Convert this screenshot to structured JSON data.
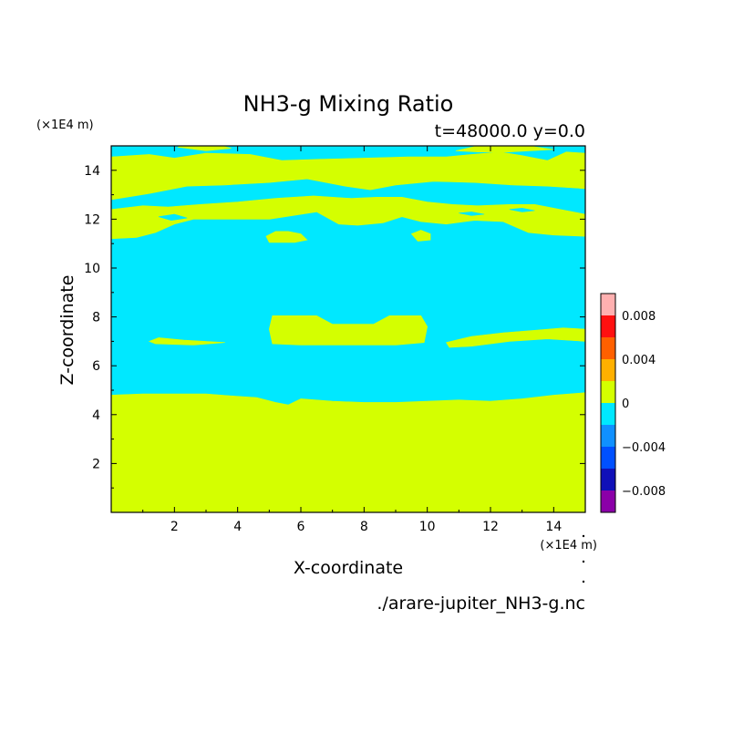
{
  "colors": {
    "background": "#ffffff",
    "text": "#000000",
    "frame": "#000000"
  },
  "chart_data": {
    "type": "heatmap",
    "title": "NH3-g Mixing Ratio",
    "subtitle": "t=48000.0 y=0.0",
    "xlabel": "X-coordinate",
    "ylabel": "Z-coordinate",
    "x_unit_label": "(×1E4 m)",
    "y_unit_label": "(×1E4 m)",
    "x_range": [
      0,
      15
    ],
    "y_range": [
      0,
      15
    ],
    "x_ticks": [
      2,
      4,
      6,
      8,
      10,
      12,
      14
    ],
    "y_ticks": [
      2,
      4,
      6,
      8,
      10,
      12,
      14
    ],
    "filename": "./arare-jupiter_NH3-g.nc",
    "colorbar": {
      "levels": [
        -0.01,
        -0.008,
        -0.006,
        -0.004,
        -0.002,
        0,
        0.002,
        0.004,
        0.006,
        0.008,
        0.01
      ],
      "colors": [
        "#8b00a8",
        "#1010b8",
        "#0050ff",
        "#1090ff",
        "#00e8ff",
        "#d4ff00",
        "#ffb000",
        "#ff6000",
        "#ff1010",
        "#ffb0b0"
      ],
      "tick_values": [
        -0.008,
        -0.004,
        0,
        0.004,
        0.008
      ],
      "tick_labels": [
        "−0.008",
        "−0.004",
        "0",
        "0.004",
        "0.008"
      ]
    },
    "field": {
      "background_class": "-0.002 to 0",
      "regions": [
        {
          "class": "0 to 0.002",
          "polygon": [
            [
              0,
              0
            ],
            [
              15,
              0
            ],
            [
              15,
              4.9
            ],
            [
              14,
              4.8
            ],
            [
              13,
              4.65
            ],
            [
              12,
              4.55
            ],
            [
              11,
              4.6
            ],
            [
              10,
              4.55
            ],
            [
              9,
              4.5
            ],
            [
              8,
              4.5
            ],
            [
              7,
              4.55
            ],
            [
              6,
              4.65
            ],
            [
              5.6,
              4.4
            ],
            [
              5.2,
              4.5
            ],
            [
              4.6,
              4.7
            ],
            [
              4,
              4.75
            ],
            [
              3,
              4.85
            ],
            [
              2,
              4.85
            ],
            [
              1,
              4.85
            ],
            [
              0,
              4.8
            ]
          ]
        },
        {
          "class": "0 to 0.002",
          "polygon": [
            [
              5.0,
              7.5
            ],
            [
              5.1,
              8.05
            ],
            [
              6.5,
              8.05
            ],
            [
              7.0,
              7.7
            ],
            [
              8.3,
              7.7
            ],
            [
              8.8,
              8.05
            ],
            [
              9.8,
              8.05
            ],
            [
              10.0,
              7.6
            ],
            [
              9.9,
              6.95
            ],
            [
              9.0,
              6.85
            ],
            [
              6.0,
              6.85
            ],
            [
              5.1,
              6.9
            ]
          ]
        },
        {
          "class": "0 to 0.002",
          "polygon": [
            [
              1.2,
              7.0
            ],
            [
              1.5,
              7.15
            ],
            [
              2.3,
              7.05
            ],
            [
              3.6,
              6.95
            ],
            [
              2.6,
              6.85
            ],
            [
              1.4,
              6.9
            ]
          ]
        },
        {
          "class": "0 to 0.002",
          "polygon": [
            [
              10.6,
              6.95
            ],
            [
              11.4,
              7.2
            ],
            [
              12.4,
              7.35
            ],
            [
              13.4,
              7.45
            ],
            [
              14.3,
              7.55
            ],
            [
              15,
              7.5
            ],
            [
              15,
              7.0
            ],
            [
              13.8,
              7.1
            ],
            [
              12.6,
              7.0
            ],
            [
              11.4,
              6.8
            ],
            [
              10.7,
              6.75
            ]
          ]
        },
        {
          "class": "0 to 0.002",
          "polygon": [
            [
              0,
              11.2
            ],
            [
              0.8,
              11.25
            ],
            [
              1.4,
              11.45
            ],
            [
              2.0,
              11.8
            ],
            [
              2.6,
              12.0
            ],
            [
              3.8,
              12.0
            ],
            [
              5.0,
              12.0
            ],
            [
              6.5,
              12.3
            ],
            [
              7.2,
              11.8
            ],
            [
              7.8,
              11.75
            ],
            [
              8.6,
              11.85
            ],
            [
              9.2,
              12.1
            ],
            [
              9.8,
              11.9
            ],
            [
              10.6,
              11.8
            ],
            [
              11.5,
              11.95
            ],
            [
              12.4,
              11.9
            ],
            [
              13.2,
              11.45
            ],
            [
              14.0,
              11.35
            ],
            [
              15,
              11.3
            ],
            [
              15,
              12.2
            ],
            [
              14.2,
              12.4
            ],
            [
              13.4,
              12.6
            ],
            [
              12.6,
              12.6
            ],
            [
              11.6,
              12.55
            ],
            [
              10.8,
              12.6
            ],
            [
              10,
              12.7
            ],
            [
              9.2,
              12.9
            ],
            [
              8.4,
              12.9
            ],
            [
              7.6,
              12.85
            ],
            [
              6.4,
              12.95
            ],
            [
              5.2,
              12.85
            ],
            [
              4,
              12.7
            ],
            [
              2.8,
              12.6
            ],
            [
              1.8,
              12.5
            ],
            [
              1.0,
              12.55
            ],
            [
              0,
              12.4
            ]
          ]
        },
        {
          "class": "0 to 0.002",
          "polygon": [
            [
              0,
              12.8
            ],
            [
              1.2,
              13.05
            ],
            [
              2.4,
              13.35
            ],
            [
              3.6,
              13.4
            ],
            [
              5.0,
              13.5
            ],
            [
              6.2,
              13.65
            ],
            [
              7.4,
              13.35
            ],
            [
              8.2,
              13.2
            ],
            [
              9.0,
              13.4
            ],
            [
              10.2,
              13.55
            ],
            [
              11.5,
              13.5
            ],
            [
              12.7,
              13.4
            ],
            [
              13.8,
              13.35
            ],
            [
              15,
              13.25
            ],
            [
              15,
              14.7
            ],
            [
              14.4,
              14.75
            ],
            [
              13.8,
              14.4
            ],
            [
              13.0,
              14.6
            ],
            [
              12.3,
              14.75
            ],
            [
              11.4,
              14.65
            ],
            [
              10.6,
              14.55
            ],
            [
              9.4,
              14.55
            ],
            [
              8.0,
              14.5
            ],
            [
              6.6,
              14.45
            ],
            [
              5.4,
              14.4
            ],
            [
              4.4,
              14.65
            ],
            [
              3.0,
              14.7
            ],
            [
              2.0,
              14.5
            ],
            [
              1.2,
              14.65
            ],
            [
              0,
              14.55
            ]
          ]
        },
        {
          "class": "0 to 0.002",
          "polygon": [
            [
              4.9,
              11.3
            ],
            [
              5.2,
              11.5
            ],
            [
              5.6,
              11.5
            ],
            [
              6.0,
              11.4
            ],
            [
              6.2,
              11.15
            ],
            [
              5.8,
              11.05
            ],
            [
              5.0,
              11.05
            ]
          ]
        },
        {
          "class": "0 to 0.002",
          "polygon": [
            [
              9.5,
              11.4
            ],
            [
              9.8,
              11.55
            ],
            [
              10.1,
              11.4
            ],
            [
              10.1,
              11.15
            ],
            [
              9.7,
              11.1
            ]
          ]
        },
        {
          "class": "0 to 0.002",
          "polygon": [
            [
              10.9,
              14.8
            ],
            [
              11.6,
              15
            ],
            [
              13.2,
              15
            ],
            [
              14.0,
              14.85
            ],
            [
              12.6,
              14.75
            ],
            [
              11.6,
              14.75
            ]
          ]
        },
        {
          "class": "0 to 0.002",
          "polygon": [
            [
              2.1,
              14.95
            ],
            [
              2.3,
              15
            ],
            [
              3.5,
              15
            ],
            [
              3.8,
              14.9
            ],
            [
              3.0,
              14.8
            ]
          ]
        },
        {
          "class": "-0.002 to 0",
          "polygon": [
            [
              1.5,
              12.1
            ],
            [
              2.0,
              12.2
            ],
            [
              2.4,
              12.05
            ],
            [
              1.9,
              11.95
            ]
          ]
        },
        {
          "class": "-0.002 to 0",
          "polygon": [
            [
              6.2,
              13.1
            ],
            [
              6.4,
              13.2
            ],
            [
              6.8,
              13.1
            ],
            [
              6.5,
              13.0
            ]
          ]
        },
        {
          "class": "-0.002 to 0",
          "polygon": [
            [
              7.6,
              13.1
            ],
            [
              8.0,
              13.2
            ],
            [
              8.5,
              13.1
            ],
            [
              8.0,
              13.0
            ]
          ]
        },
        {
          "class": "-0.002 to 0",
          "polygon": [
            [
              11.0,
              12.25
            ],
            [
              11.4,
              12.3
            ],
            [
              11.8,
              12.2
            ],
            [
              11.4,
              12.15
            ]
          ]
        },
        {
          "class": "-0.002 to 0",
          "polygon": [
            [
              12.6,
              12.4
            ],
            [
              13.0,
              12.45
            ],
            [
              13.4,
              12.35
            ],
            [
              13.0,
              12.3
            ]
          ]
        }
      ]
    }
  }
}
